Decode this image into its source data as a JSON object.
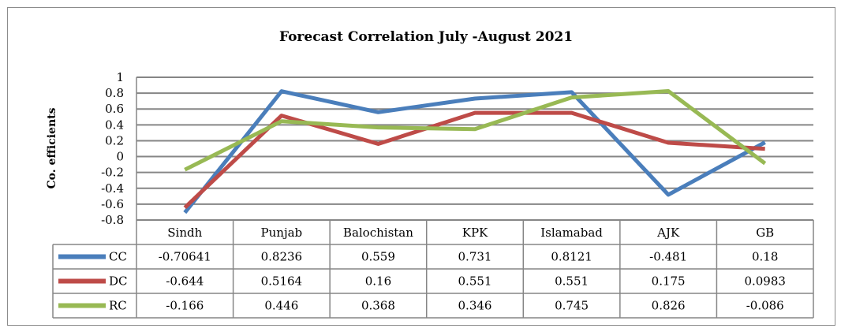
{
  "chart_data": {
    "type": "line",
    "title": "Forecast Correlation July -August 2021",
    "ylabel": "Co. efficients",
    "xlabel": "",
    "ylim": [
      -0.8,
      1
    ],
    "yticks": [
      "1",
      "0.8",
      "0.6",
      "0.4",
      "0.2",
      "0",
      "-0.2",
      "-0.4",
      "-0.6",
      "-0.8"
    ],
    "ytick_values": [
      1,
      0.8,
      0.6,
      0.4,
      0.2,
      0,
      -0.2,
      -0.4,
      -0.6,
      -0.8
    ],
    "grid": true,
    "legend": "data-table",
    "categories": [
      "Sindh",
      "Punjab",
      "Balochistan",
      "KPK",
      "Islamabad",
      "AJK",
      "GB"
    ],
    "series": [
      {
        "name": "CC",
        "color": "#4a7ebb",
        "values": [
          -0.70641,
          0.8236,
          0.559,
          0.731,
          0.8121,
          -0.481,
          0.18
        ],
        "labels": [
          "-0.70641",
          "0.8236",
          "0.559",
          "0.731",
          "0.8121",
          "-0.481",
          "0.18"
        ]
      },
      {
        "name": "DC",
        "color": "#be4b48",
        "values": [
          -0.644,
          0.5164,
          0.16,
          0.551,
          0.551,
          0.175,
          0.0983
        ],
        "labels": [
          "-0.644",
          "0.5164",
          "0.16",
          "0.551",
          "0.551",
          "0.175",
          "0.0983"
        ]
      },
      {
        "name": "RC",
        "color": "#98b954",
        "values": [
          -0.166,
          0.446,
          0.368,
          0.346,
          0.745,
          0.826,
          -0.086
        ],
        "labels": [
          "-0.166",
          "0.446",
          "0.368",
          "0.346",
          "0.745",
          "0.826",
          "-0.086"
        ]
      }
    ]
  }
}
